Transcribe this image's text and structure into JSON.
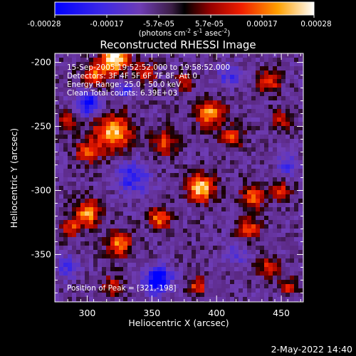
{
  "colorbar": {
    "ticks": [
      "-0.00028",
      "-0.00017",
      "-5.7e-05",
      "5.7e-05",
      "0.00017",
      "0.00028"
    ],
    "unit_main": "(photons cm",
    "unit_sup1": "-2",
    "unit_mid": " s",
    "unit_sup2": "-1",
    "unit_mid2": " asec",
    "unit_sup3": "-2",
    "unit_end": ")"
  },
  "chart_data": {
    "type": "heatmap",
    "title": "Reconstructed RHESSI Image",
    "xlabel": "Heliocentric X (arcsec)",
    "ylabel": "Heliocentric Y (arcsec)",
    "xlim": [
      275,
      467
    ],
    "ylim": [
      -387,
      -193
    ],
    "x_ticks": [
      300,
      350,
      400,
      450
    ],
    "y_ticks": [
      -200,
      -250,
      -300,
      -350
    ],
    "color_range": [
      -0.00028,
      0.00028
    ],
    "colormap": [
      "#0000ff",
      "#5a3cc8",
      "#8c3c8c",
      "#000000",
      "#aa0000",
      "#ff3c00",
      "#ffc800",
      "#ffffff"
    ],
    "annotations": [
      "15-Sep-2005 19:52:52.000 to 19:58:52.000",
      "Detectors: 3F 4F 5F 6F 7F 8F, Att 0",
      "Energy Range: 25.0 - 50.0 keV",
      "Clean    Total counts: 6.39E+03",
      "Position of Peak = [321,-198]"
    ],
    "peak": [
      321,
      -198
    ]
  },
  "footer": {
    "timestamp": "2-May-2022 14:40"
  }
}
